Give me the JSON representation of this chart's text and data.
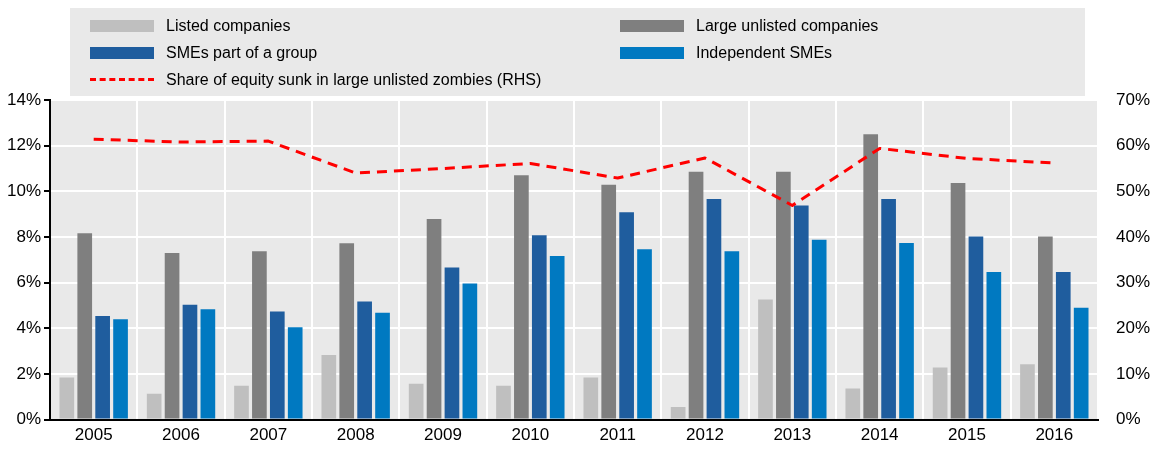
{
  "chart_data": {
    "type": "bar",
    "categories": [
      "2005",
      "2006",
      "2007",
      "2008",
      "2009",
      "2010",
      "2011",
      "2012",
      "2013",
      "2014",
      "2015",
      "2016"
    ],
    "series": [
      {
        "name": "Listed companies",
        "color": "#bfbfbf",
        "values": [
          1.84,
          1.13,
          1.48,
          2.83,
          1.57,
          1.48,
          1.84,
          0.55,
          5.26,
          1.36,
          2.28,
          2.43
        ]
      },
      {
        "name": "Large unlisted companies",
        "color": "#7f7f7f",
        "values": [
          8.16,
          7.3,
          7.37,
          7.73,
          8.79,
          10.7,
          10.29,
          10.86,
          10.86,
          12.5,
          10.36,
          8.02
        ]
      },
      {
        "name": "SMEs part of a group",
        "color": "#1f5d9e",
        "values": [
          4.54,
          5.03,
          4.74,
          5.17,
          6.66,
          8.07,
          9.08,
          9.66,
          9.38,
          9.66,
          8.02,
          6.47
        ]
      },
      {
        "name": "Independent SMEs",
        "color": "#0079c1",
        "values": [
          4.4,
          4.83,
          4.04,
          4.68,
          5.96,
          7.17,
          7.46,
          7.38,
          7.88,
          7.74,
          6.47,
          4.9
        ]
      },
      {
        "name": "Share of equity sunk in large unlisted zombies (RHS)",
        "type": "line",
        "axis": "y2",
        "color": "#ff0000",
        "line_style": "dashed",
        "marker": "none",
        "values": [
          61.4,
          60.8,
          61,
          54,
          55,
          56.1,
          52.9,
          57.3,
          46.9,
          59.4,
          57.2,
          56.2
        ]
      }
    ],
    "ylim": [
      0,
      14
    ],
    "yticks": [
      {
        "value": 0,
        "label": "0%"
      },
      {
        "value": 2,
        "label": "2%"
      },
      {
        "value": 4,
        "label": "4%"
      },
      {
        "value": 6,
        "label": "6%"
      },
      {
        "value": 8,
        "label": "8%"
      },
      {
        "value": 10,
        "label": "10%"
      },
      {
        "value": 12,
        "label": "12%"
      },
      {
        "value": 14,
        "label": "14%"
      }
    ],
    "y2lim": [
      0,
      70
    ],
    "y2ticks": [
      {
        "value": 0,
        "label": "0%"
      },
      {
        "value": 10,
        "label": "10%"
      },
      {
        "value": 20,
        "label": "20%"
      },
      {
        "value": 30,
        "label": "30%"
      },
      {
        "value": 40,
        "label": "40%"
      },
      {
        "value": 50,
        "label": "50%"
      },
      {
        "value": 60,
        "label": "60%"
      },
      {
        "value": 70,
        "label": "70%"
      }
    ],
    "grid": true,
    "legend": "top"
  }
}
